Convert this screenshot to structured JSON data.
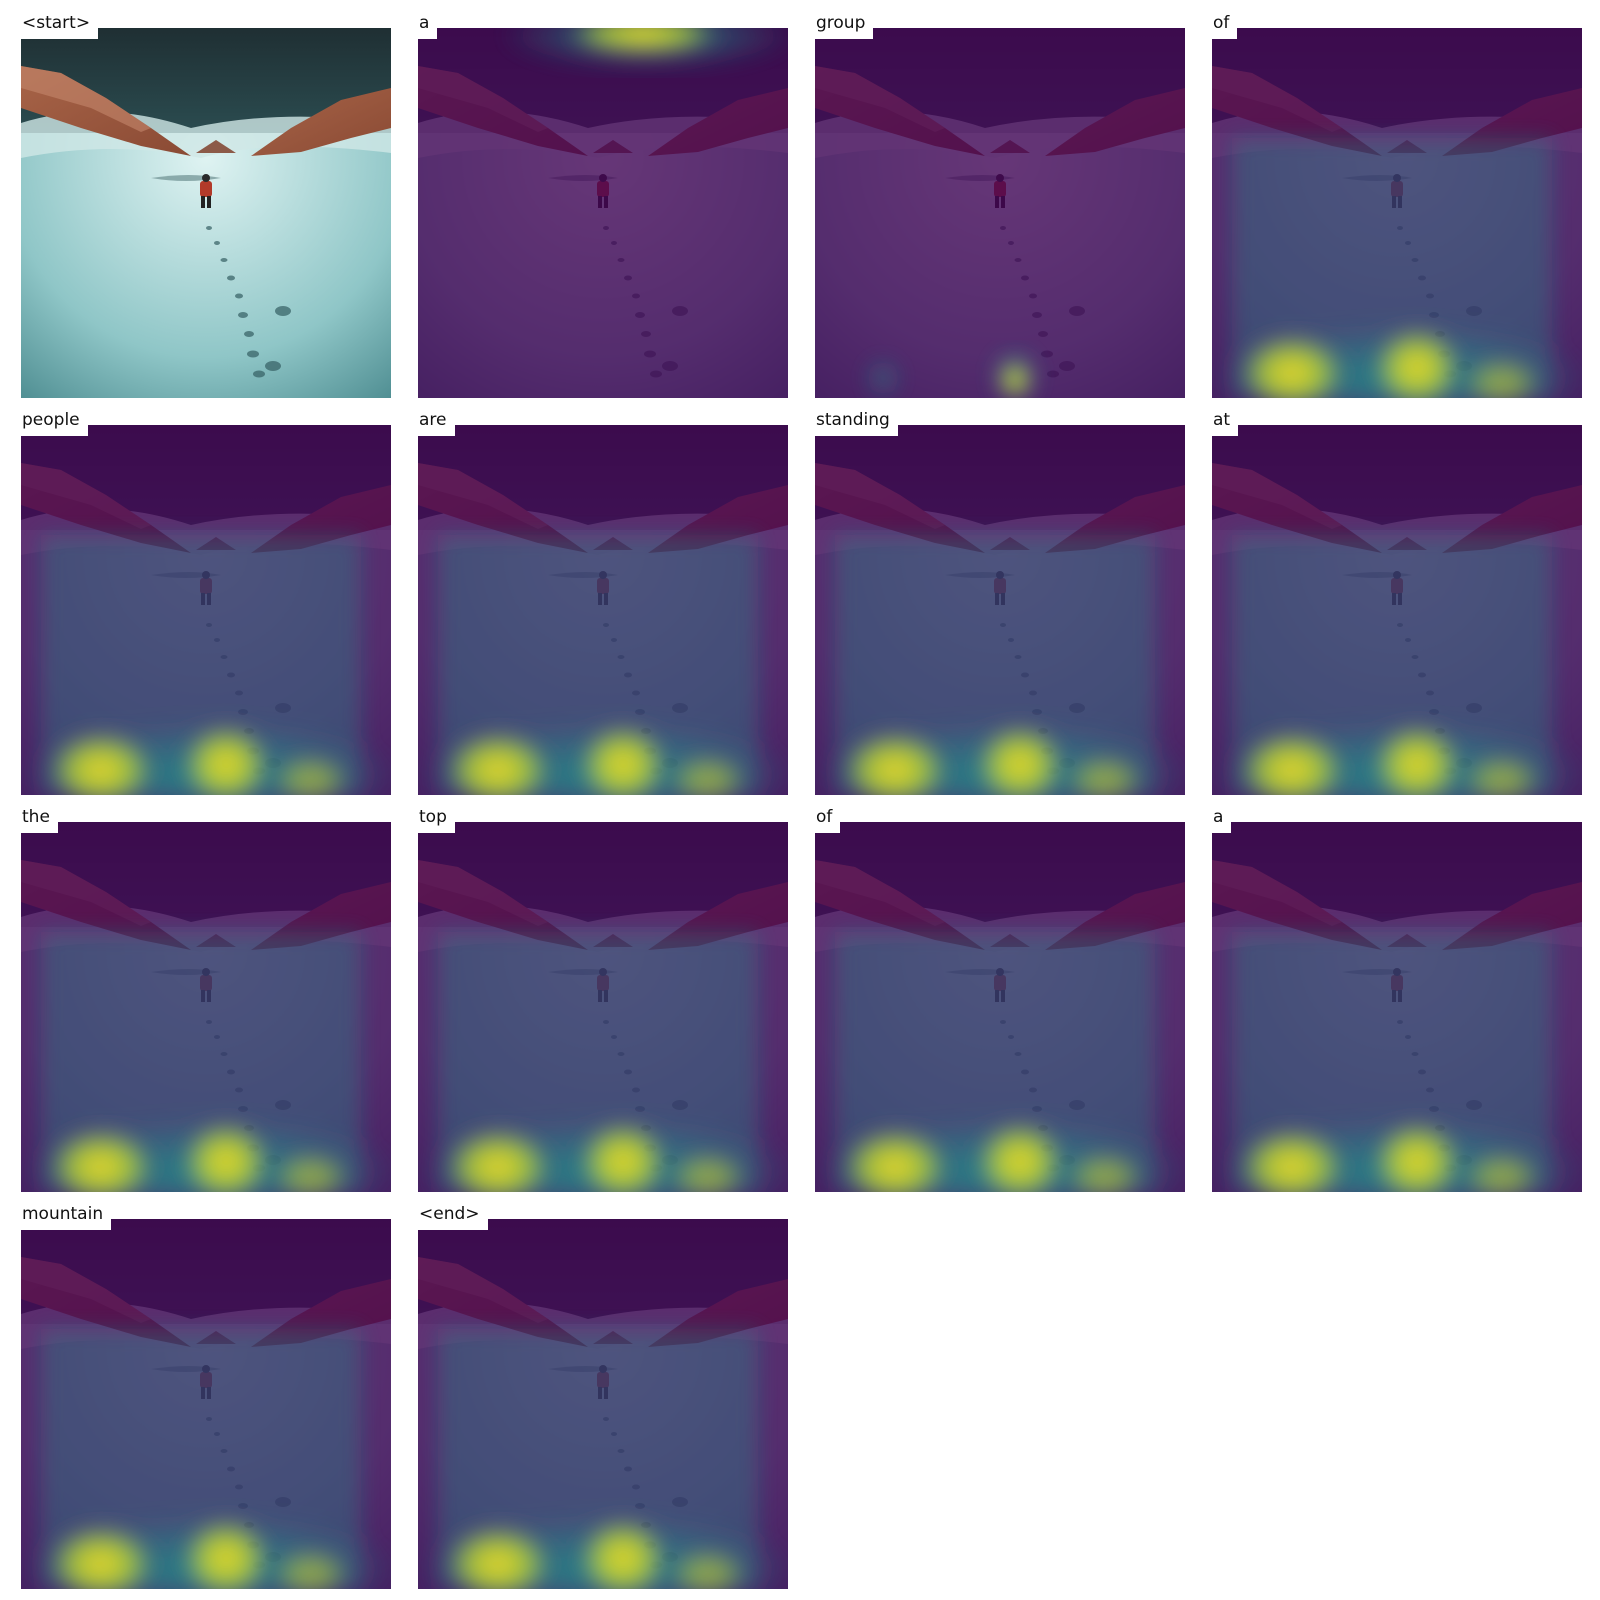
{
  "panels": [
    {
      "word": "<start>",
      "overlay": false
    },
    {
      "word": "a",
      "overlay": true,
      "focus": "top"
    },
    {
      "word": "group",
      "overlay": true,
      "focus": "bottom-spot"
    },
    {
      "word": "of",
      "overlay": true,
      "focus": "bottom-band"
    },
    {
      "word": "people",
      "overlay": true,
      "focus": "bottom-band"
    },
    {
      "word": "are",
      "overlay": true,
      "focus": "bottom-band"
    },
    {
      "word": "standing",
      "overlay": true,
      "focus": "bottom-band"
    },
    {
      "word": "at",
      "overlay": true,
      "focus": "bottom-band"
    },
    {
      "word": "the",
      "overlay": true,
      "focus": "bottom-band"
    },
    {
      "word": "top",
      "overlay": true,
      "focus": "bottom-band"
    },
    {
      "word": "of",
      "overlay": true,
      "focus": "bottom-band"
    },
    {
      "word": "a",
      "overlay": true,
      "focus": "bottom-band"
    },
    {
      "word": "mountain",
      "overlay": true,
      "focus": "bottom-band"
    },
    {
      "word": "<end>",
      "overlay": true,
      "focus": "bottom-band"
    }
  ],
  "colors": {
    "heatmap_low": "#440154",
    "heatmap_mid": "#21918c",
    "heatmap_high": "#fde725",
    "snow": "#dff3f2",
    "rock": "#8a4a34"
  }
}
